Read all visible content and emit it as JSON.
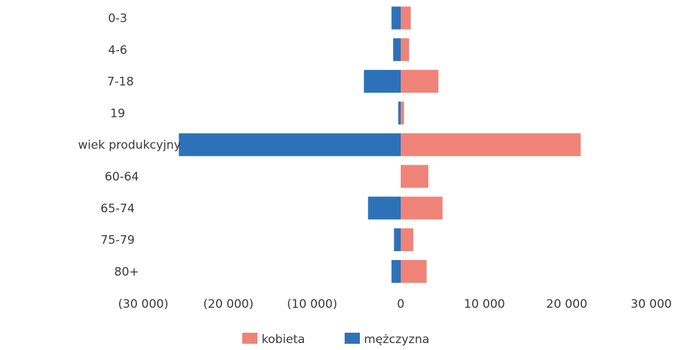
{
  "chart_data": {
    "type": "bar",
    "orientation": "horizontal",
    "stacked": "diverging",
    "categories": [
      "0-3",
      "4-6",
      "7-18",
      "19",
      "wiek produkcyjny",
      "60-64",
      "65-74",
      "75-79",
      "80+"
    ],
    "series": [
      {
        "name": "kobieta",
        "color": "#f08378",
        "values": [
          1200,
          1000,
          4500,
          400,
          21500,
          3300,
          5000,
          1500,
          3100
        ]
      },
      {
        "name": "mężczyzna",
        "color": "#2d72b8",
        "values": [
          -1100,
          -900,
          -4400,
          -300,
          -26500,
          0,
          -3900,
          -800,
          -1100
        ]
      }
    ],
    "x_tick_labels": [
      "(30 000)",
      "(20 000)",
      "(10 000)",
      "0",
      "10 000",
      "20 000",
      "30 000"
    ],
    "x_ticks": [
      -30000,
      -20000,
      -10000,
      0,
      10000,
      20000,
      30000
    ],
    "xlim": [
      -30000,
      30000
    ],
    "grid": false,
    "legend_position": "bottom"
  }
}
